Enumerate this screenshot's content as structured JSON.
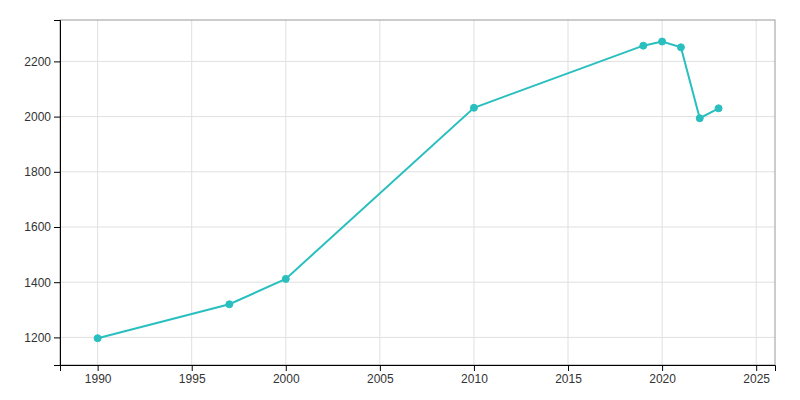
{
  "chart_data": {
    "type": "line",
    "x": [
      1990,
      1997,
      2000,
      2010,
      2019,
      2020,
      2021,
      2022,
      2023
    ],
    "values": [
      1197,
      1320,
      1412,
      2032,
      2257,
      2272,
      2251,
      1994,
      2030
    ],
    "color": "#2abfbf",
    "marker": "circle",
    "xlim": [
      1988,
      2026
    ],
    "ylim": [
      1100,
      2350
    ],
    "xticks": [
      1990,
      1995,
      2000,
      2005,
      2010,
      2015,
      2020,
      2025
    ],
    "yticks": [
      1200,
      1400,
      1600,
      1800,
      2000,
      2200
    ],
    "grid": true
  }
}
